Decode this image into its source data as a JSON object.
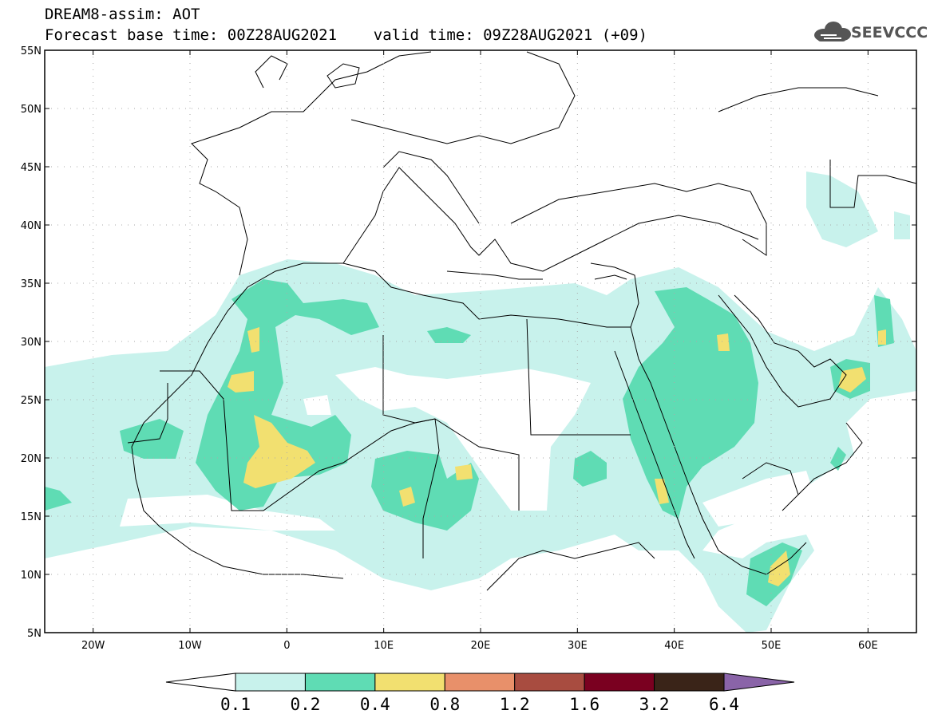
{
  "header": {
    "title_line1": "DREAM8-assim: AOT",
    "title_line2": "Forecast base time: 00Z28AUG2021    valid time: 09Z28AUG2021 (+09)",
    "logo_text": "SEEVCCC"
  },
  "map": {
    "lon_range": [
      -25,
      65
    ],
    "lat_range": [
      5,
      55
    ],
    "lon_ticks": [
      {
        "value": -20,
        "label": "20W"
      },
      {
        "value": -10,
        "label": "10W"
      },
      {
        "value": 0,
        "label": "0"
      },
      {
        "value": 10,
        "label": "10E"
      },
      {
        "value": 20,
        "label": "20E"
      },
      {
        "value": 30,
        "label": "30E"
      },
      {
        "value": 40,
        "label": "40E"
      },
      {
        "value": 50,
        "label": "50E"
      },
      {
        "value": 60,
        "label": "60E"
      }
    ],
    "lat_ticks": [
      {
        "value": 55,
        "label": "55N"
      },
      {
        "value": 50,
        "label": "50N"
      },
      {
        "value": 45,
        "label": "45N"
      },
      {
        "value": 40,
        "label": "40N"
      },
      {
        "value": 35,
        "label": "35N"
      },
      {
        "value": 30,
        "label": "30N"
      },
      {
        "value": 25,
        "label": "25N"
      },
      {
        "value": 20,
        "label": "20N"
      },
      {
        "value": 15,
        "label": "15N"
      },
      {
        "value": 10,
        "label": "10N"
      },
      {
        "value": 5,
        "label": "5N"
      }
    ],
    "grid": true
  },
  "colorbar": {
    "labels": [
      "0.1",
      "0.2",
      "0.4",
      "0.8",
      "1.2",
      "1.6",
      "3.2",
      "6.4"
    ],
    "colors": [
      "#c8f2ec",
      "#5fdcb4",
      "#f2e070",
      "#e8906a",
      "#a84c40",
      "#7a0020",
      "#3a2418"
    ],
    "left_arrow_color": "#ffffff",
    "right_arrow_color": "#8a64a8"
  }
}
